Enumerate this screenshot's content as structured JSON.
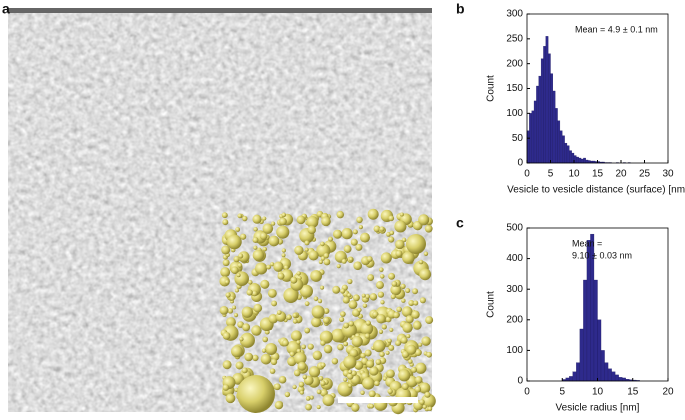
{
  "image_panel": {
    "label": "a"
  },
  "chart_data": [
    {
      "type": "histogram",
      "panel_label": "b",
      "x_label": "Vesicle to vesicle distance (surface) [nm]",
      "y_label": "Count",
      "annotation": [
        "Mean = 4.9 ± 0.1 nm"
      ],
      "color": "#2e2a8c",
      "bins": [
        0,
        0.5,
        1,
        1.5,
        2,
        2.5,
        3,
        3.5,
        4,
        4.5,
        5,
        5.5,
        6,
        6.5,
        7,
        7.5,
        8,
        8.5,
        9,
        9.5,
        10,
        10.5,
        11,
        11.5,
        12,
        12.5,
        13,
        13.5,
        14,
        14.5,
        15,
        15.5,
        16,
        16.5,
        17,
        17.5,
        18,
        18.5,
        19,
        19.5,
        20,
        20.5,
        21,
        21.5,
        22
      ],
      "values": [
        65,
        100,
        105,
        125,
        155,
        175,
        210,
        235,
        255,
        220,
        180,
        145,
        110,
        85,
        65,
        55,
        40,
        35,
        25,
        20,
        15,
        12,
        10,
        8,
        10,
        6,
        5,
        4,
        4,
        3,
        3,
        2,
        2,
        1,
        1,
        1,
        0,
        0,
        1,
        0,
        0,
        1,
        0,
        1
      ],
      "xlim": [
        0,
        30
      ],
      "xticks": [
        0,
        5,
        10,
        15,
        20,
        25,
        30
      ],
      "ylim": [
        0,
        300
      ],
      "yticks": [
        0,
        50,
        100,
        150,
        200,
        250,
        300
      ]
    },
    {
      "type": "histogram",
      "panel_label": "c",
      "x_label": "Vesicle radius [nm]",
      "y_label": "Count",
      "annotation": [
        "Mean =",
        "9.10 ± 0.03 nm"
      ],
      "color": "#2e2a8c",
      "bins": [
        5,
        5.5,
        6,
        6.5,
        7,
        7.5,
        8,
        8.5,
        9,
        9.5,
        10,
        10.5,
        11,
        11.5,
        12,
        12.5,
        13,
        13.5,
        14,
        14.5,
        15,
        15.5,
        16
      ],
      "values": [
        5,
        10,
        15,
        30,
        60,
        170,
        330,
        460,
        480,
        330,
        200,
        100,
        60,
        40,
        30,
        20,
        12,
        10,
        6,
        4,
        3,
        2
      ],
      "xlim": [
        0,
        20
      ],
      "xticks": [
        0,
        5,
        10,
        15,
        20
      ],
      "ylim": [
        0,
        500
      ],
      "yticks": [
        0,
        100,
        200,
        300,
        400,
        500
      ]
    }
  ]
}
